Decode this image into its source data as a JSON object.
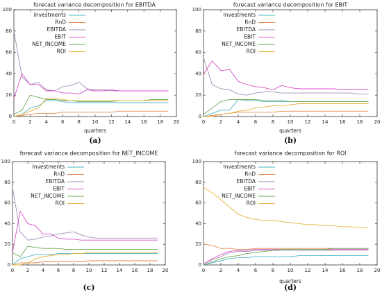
{
  "figure": {
    "panel_labels": [
      "(a)",
      "(b)",
      "(c)",
      "(d)"
    ]
  },
  "chart_data": [
    {
      "type": "line",
      "title": "forecast variance decomposition for EBITDA",
      "xlabel": "quarters",
      "ylabel": "",
      "xlim": [
        0,
        20
      ],
      "ylim": [
        0,
        100
      ],
      "xticks": [
        0,
        2,
        4,
        6,
        8,
        10,
        12,
        14,
        16,
        18,
        20
      ],
      "yticks": [
        0,
        20,
        40,
        60,
        80,
        100
      ],
      "legend_position": "top-left",
      "x": [
        0,
        1,
        2,
        3,
        4,
        5,
        6,
        7,
        8,
        9,
        10,
        11,
        12,
        13,
        14,
        15,
        16,
        17,
        18,
        19
      ],
      "series": [
        {
          "name": "Investments",
          "color": "#4fb6c7",
          "values": [
            0,
            2,
            8,
            10,
            15,
            15,
            14,
            13,
            13,
            13,
            13,
            13,
            13,
            13,
            13,
            13,
            13,
            13,
            13,
            13
          ]
        },
        {
          "name": "RnD",
          "color": "#e08a52",
          "values": [
            0,
            1,
            2,
            3,
            3,
            3,
            4,
            4,
            4,
            4,
            4,
            4,
            4,
            5,
            5,
            5,
            5,
            5,
            5,
            5
          ]
        },
        {
          "name": "EBITDA",
          "color": "#a28fb4",
          "values": [
            80,
            37,
            30,
            32,
            25,
            24,
            28,
            29,
            32,
            26,
            25,
            25,
            24,
            24,
            24,
            24,
            24,
            24,
            24,
            24
          ]
        },
        {
          "name": "EBIT",
          "color": "#d84fc8",
          "values": [
            17,
            40,
            30,
            30,
            24,
            24,
            22,
            22,
            21,
            25,
            24,
            24,
            25,
            24,
            24,
            24,
            24,
            24,
            24,
            24
          ]
        },
        {
          "name": "NET_INCOME",
          "color": "#6aa84f",
          "values": [
            2,
            6,
            20,
            18,
            16,
            16,
            15,
            15,
            14,
            14,
            14,
            14,
            14,
            15,
            15,
            15,
            15,
            16,
            16,
            16
          ]
        },
        {
          "name": "ROI",
          "color": "#e6b23a",
          "values": [
            0,
            2,
            5,
            8,
            17,
            17,
            16,
            15,
            15,
            15,
            15,
            15,
            15,
            15,
            15,
            15,
            15,
            15,
            15,
            15
          ]
        }
      ]
    },
    {
      "type": "line",
      "title": "forecast variance decomposition for EBIT",
      "xlabel": "quarters",
      "ylabel": "",
      "xlim": [
        0,
        20
      ],
      "ylim": [
        0,
        100
      ],
      "xticks": [
        0,
        2,
        4,
        6,
        8,
        10,
        12,
        14,
        16,
        18,
        20
      ],
      "yticks": [
        0,
        20,
        40,
        60,
        80,
        100
      ],
      "legend_position": "top-left",
      "x": [
        0,
        1,
        2,
        3,
        4,
        5,
        6,
        7,
        8,
        9,
        10,
        11,
        12,
        13,
        14,
        15,
        16,
        17,
        18,
        19
      ],
      "series": [
        {
          "name": "Investments",
          "color": "#4fb6c7",
          "values": [
            0,
            3,
            6,
            6,
            16,
            15,
            15,
            14,
            14,
            14,
            14,
            14,
            14,
            14,
            14,
            14,
            14,
            14,
            14,
            14
          ]
        },
        {
          "name": "RnD",
          "color": "#e08a52",
          "values": [
            0,
            1,
            2,
            3,
            4,
            4,
            4,
            4,
            4,
            5,
            5,
            5,
            5,
            5,
            5,
            5,
            5,
            5,
            5,
            5
          ]
        },
        {
          "name": "EBITDA",
          "color": "#a28fb4",
          "values": [
            55,
            30,
            26,
            25,
            21,
            20,
            22,
            23,
            23,
            22,
            22,
            22,
            22,
            22,
            22,
            22,
            22,
            22,
            21,
            21
          ]
        },
        {
          "name": "EBIT",
          "color": "#d84fc8",
          "values": [
            40,
            52,
            43,
            44,
            33,
            30,
            28,
            27,
            25,
            29,
            27,
            26,
            26,
            26,
            26,
            26,
            25,
            25,
            25,
            25
          ]
        },
        {
          "name": "NET_INCOME",
          "color": "#6aa84f",
          "values": [
            2,
            8,
            14,
            16,
            16,
            16,
            16,
            15,
            15,
            15,
            14,
            14,
            14,
            14,
            14,
            14,
            14,
            14,
            14,
            14
          ]
        },
        {
          "name": "ROI",
          "color": "#e6b23a",
          "values": [
            0,
            0,
            2,
            3,
            5,
            6,
            8,
            9,
            10,
            10,
            11,
            12,
            12,
            12,
            12,
            12,
            12,
            12,
            12,
            12
          ]
        }
      ]
    },
    {
      "type": "line",
      "title": "forecast variance decomposition for NET_INCOME",
      "xlabel": "",
      "ylabel": "",
      "xlim": [
        0,
        20
      ],
      "ylim": [
        0,
        100
      ],
      "xticks": [
        0,
        2,
        4,
        6,
        8,
        10,
        12,
        14,
        16,
        18,
        20
      ],
      "yticks": [
        0,
        20,
        40,
        60,
        80,
        100
      ],
      "legend_position": "top-left",
      "x": [
        0,
        1,
        2,
        3,
        4,
        5,
        6,
        7,
        8,
        9,
        10,
        11,
        12,
        13,
        14,
        15,
        16,
        17,
        18,
        19
      ],
      "series": [
        {
          "name": "Investments",
          "color": "#4fb6c7",
          "values": [
            0,
            6,
            8,
            10,
            10,
            10,
            11,
            11,
            11,
            11,
            11,
            11,
            11,
            11,
            11,
            11,
            11,
            11,
            11,
            11
          ]
        },
        {
          "name": "RnD",
          "color": "#e08a52",
          "values": [
            0,
            2,
            2,
            2,
            3,
            3,
            3,
            3,
            3,
            3,
            4,
            4,
            4,
            4,
            4,
            4,
            4,
            4,
            4,
            4
          ]
        },
        {
          "name": "EBITDA",
          "color": "#a28fb4",
          "values": [
            75,
            32,
            24,
            25,
            27,
            28,
            30,
            31,
            32,
            29,
            27,
            26,
            26,
            26,
            26,
            26,
            26,
            26,
            26,
            26
          ]
        },
        {
          "name": "EBIT",
          "color": "#d84fc8",
          "values": [
            12,
            52,
            40,
            38,
            30,
            30,
            26,
            25,
            25,
            24,
            24,
            24,
            24,
            24,
            24,
            24,
            24,
            24,
            24,
            24
          ]
        },
        {
          "name": "NET_INCOME",
          "color": "#6aa84f",
          "values": [
            12,
            8,
            18,
            17,
            16,
            16,
            16,
            15,
            15,
            15,
            15,
            15,
            15,
            15,
            15,
            15,
            15,
            15,
            15,
            15
          ]
        },
        {
          "name": "ROI",
          "color": "#e6b23a",
          "values": [
            0,
            0,
            2,
            6,
            8,
            9,
            10,
            10,
            11,
            11,
            12,
            12,
            12,
            12,
            12,
            12,
            12,
            12,
            12,
            12
          ]
        }
      ]
    },
    {
      "type": "line",
      "title": "forecast variance decomposition for ROI",
      "xlabel": "quarters",
      "ylabel": "",
      "xlim": [
        0,
        20
      ],
      "ylim": [
        0,
        100
      ],
      "xticks": [
        0,
        2,
        4,
        6,
        8,
        10,
        12,
        14,
        16,
        18,
        20
      ],
      "yticks": [
        0,
        20,
        40,
        60,
        80,
        100
      ],
      "legend_position": "top-left",
      "x": [
        0,
        1,
        2,
        3,
        4,
        5,
        6,
        7,
        8,
        9,
        10,
        11,
        12,
        13,
        14,
        15,
        16,
        17,
        18,
        19
      ],
      "series": [
        {
          "name": "Investments",
          "color": "#4fb6c7",
          "values": [
            0,
            2,
            4,
            6,
            7,
            7,
            8,
            8,
            8,
            8,
            8,
            9,
            9,
            9,
            9,
            9,
            9,
            9,
            9,
            9
          ]
        },
        {
          "name": "RnD",
          "color": "#e08a52",
          "values": [
            20,
            19,
            16,
            16,
            15,
            15,
            16,
            16,
            16,
            16,
            16,
            16,
            16,
            16,
            16,
            16,
            16,
            16,
            16,
            16
          ]
        },
        {
          "name": "EBITDA",
          "color": "#a28fb4",
          "values": [
            1,
            5,
            8,
            12,
            13,
            13,
            14,
            14,
            14,
            14,
            14,
            14,
            14,
            14,
            14,
            14,
            14,
            14,
            14,
            14
          ]
        },
        {
          "name": "EBIT",
          "color": "#d84fc8",
          "values": [
            1,
            6,
            10,
            13,
            14,
            14,
            15,
            15,
            15,
            15,
            15,
            15,
            15,
            15,
            15,
            15,
            15,
            15,
            15,
            15
          ]
        },
        {
          "name": "NET_INCOME",
          "color": "#6aa84f",
          "values": [
            0,
            3,
            6,
            8,
            9,
            11,
            12,
            13,
            14,
            15,
            15,
            15,
            15,
            15,
            15,
            16,
            16,
            16,
            16,
            16
          ]
        },
        {
          "name": "ROI",
          "color": "#e6b23a",
          "values": [
            75,
            70,
            63,
            56,
            49,
            46,
            44,
            43,
            43,
            42,
            41,
            40,
            39,
            39,
            38,
            38,
            37,
            37,
            36,
            36
          ]
        }
      ]
    }
  ]
}
